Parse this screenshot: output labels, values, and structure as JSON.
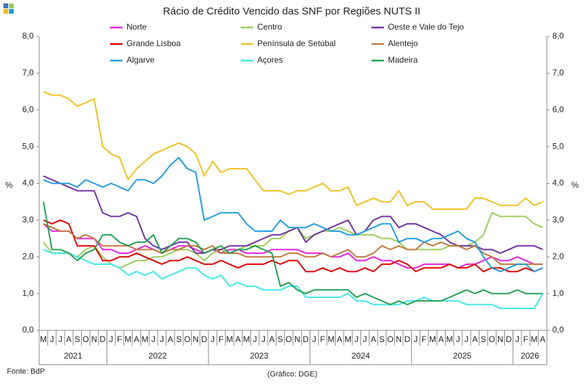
{
  "chart_data": {
    "type": "line",
    "title": "Rácio de Crédito Vencido das SNF por Regiões NUTS II",
    "ylabel": "%",
    "source": "Fonte: BdP",
    "credit": "(Gráfico: DGE)",
    "categories": [
      "M",
      "J",
      "J",
      "A",
      "S",
      "O",
      "N",
      "D",
      "J",
      "F",
      "M",
      "A",
      "M",
      "J",
      "J",
      "A",
      "S",
      "O",
      "N",
      "D",
      "J",
      "F",
      "M",
      "A",
      "M",
      "J",
      "J",
      "A",
      "S",
      "O",
      "N",
      "D",
      "J",
      "F",
      "M",
      "A",
      "M",
      "J",
      "J",
      "A",
      "S",
      "O",
      "N",
      "D",
      "J",
      "F",
      "M",
      "A",
      "M",
      "J",
      "J",
      "A",
      "S",
      "O",
      "N",
      "D",
      "J",
      "F",
      "M",
      "A"
    ],
    "year_labels": [
      "2021",
      "2022",
      "2023",
      "2024",
      "2025",
      "2026"
    ],
    "ylim": [
      0,
      8
    ],
    "yticks": [
      {
        "value": 0,
        "label": "0,0"
      },
      {
        "value": 1,
        "label": "1,0"
      },
      {
        "value": 2,
        "label": "2,0"
      },
      {
        "value": 3,
        "label": "3,0"
      },
      {
        "value": 4,
        "label": "4,0"
      },
      {
        "value": 5,
        "label": "5,0"
      },
      {
        "value": 6,
        "label": "6,0"
      },
      {
        "value": 7,
        "label": "7,0"
      },
      {
        "value": 8,
        "label": "8,0"
      }
    ],
    "series": [
      {
        "name": "Norte",
        "color": "#e620e0",
        "values": [
          2.9,
          2.7,
          2.7,
          2.7,
          2.5,
          2.5,
          2.5,
          2.2,
          2.2,
          2.1,
          2.1,
          2.2,
          2.3,
          2.2,
          2.1,
          2.2,
          2.3,
          2.3,
          2.2,
          2.1,
          2.2,
          2.1,
          2.2,
          2.2,
          2.1,
          2.1,
          2.1,
          2.2,
          2.2,
          2.2,
          2.2,
          2.1,
          2.1,
          2.1,
          2.0,
          2.0,
          2.1,
          1.9,
          1.9,
          2.0,
          1.9,
          1.9,
          1.8,
          1.7,
          1.7,
          1.8,
          1.8,
          1.8,
          1.8,
          1.7,
          1.8,
          1.8,
          1.9,
          2.0,
          1.9,
          1.9,
          2.0,
          1.9,
          1.8,
          1.8
        ]
      },
      {
        "name": "Centro",
        "color": "#9acd5a",
        "values": [
          2.4,
          2.1,
          2.1,
          2.1,
          2.0,
          2.2,
          2.3,
          2.0,
          1.8,
          1.7,
          1.8,
          1.9,
          1.9,
          2.0,
          2.0,
          2.1,
          2.2,
          2.2,
          2.1,
          1.9,
          2.1,
          2.2,
          2.1,
          2.2,
          2.3,
          2.3,
          2.3,
          2.5,
          2.5,
          2.7,
          2.8,
          2.5,
          2.6,
          2.7,
          2.7,
          2.8,
          2.7,
          2.6,
          2.6,
          2.6,
          2.5,
          2.5,
          2.4,
          2.2,
          2.2,
          2.2,
          2.2,
          2.2,
          2.3,
          2.3,
          2.3,
          2.4,
          2.6,
          3.2,
          3.1,
          3.1,
          3.1,
          3.1,
          2.9,
          2.8
        ]
      },
      {
        "name": "Oeste e Vale do Tejo",
        "color": "#7030a0",
        "values": [
          4.2,
          4.1,
          4.0,
          3.9,
          3.8,
          3.8,
          3.8,
          3.2,
          3.1,
          3.1,
          3.2,
          3.1,
          2.5,
          2.3,
          2.2,
          2.3,
          2.4,
          2.4,
          2.1,
          2.1,
          2.2,
          2.2,
          2.3,
          2.3,
          2.3,
          2.4,
          2.5,
          2.6,
          2.6,
          2.7,
          2.8,
          2.4,
          2.6,
          2.7,
          2.8,
          2.9,
          3.0,
          2.6,
          2.7,
          3.0,
          3.1,
          3.1,
          2.8,
          2.9,
          2.9,
          2.8,
          2.7,
          2.6,
          2.4,
          2.3,
          2.3,
          2.3,
          2.2,
          2.2,
          2.1,
          2.2,
          2.3,
          2.3,
          2.3,
          2.2
        ]
      },
      {
        "name": "Grande Lisboa",
        "color": "#e00000",
        "values": [
          3.0,
          2.9,
          3.0,
          2.9,
          2.3,
          2.3,
          2.3,
          1.9,
          1.9,
          2.0,
          2.0,
          2.1,
          2.0,
          1.9,
          1.8,
          1.9,
          1.9,
          2.0,
          1.9,
          1.8,
          1.8,
          1.9,
          1.8,
          1.7,
          1.8,
          1.8,
          1.8,
          1.9,
          1.8,
          1.9,
          1.9,
          1.6,
          1.6,
          1.7,
          1.6,
          1.7,
          1.6,
          1.6,
          1.7,
          1.6,
          1.8,
          1.8,
          1.9,
          1.8,
          1.6,
          1.7,
          1.7,
          1.7,
          1.8,
          1.7,
          1.7,
          1.8,
          1.6,
          1.7,
          1.7,
          1.6,
          1.6,
          1.7,
          1.6,
          1.7
        ]
      },
      {
        "name": "Península de Setúbal",
        "color": "#f0c020",
        "values": [
          6.5,
          6.4,
          6.4,
          6.3,
          6.1,
          6.2,
          6.3,
          5.0,
          4.8,
          4.7,
          4.1,
          4.4,
          4.6,
          4.8,
          4.9,
          5.0,
          5.1,
          5.0,
          4.8,
          4.2,
          4.6,
          4.3,
          4.4,
          4.4,
          4.4,
          4.1,
          3.8,
          3.8,
          3.8,
          3.7,
          3.8,
          3.8,
          3.9,
          4.0,
          3.8,
          3.8,
          3.9,
          3.4,
          3.5,
          3.6,
          3.5,
          3.5,
          3.8,
          3.4,
          3.5,
          3.5,
          3.3,
          3.3,
          3.3,
          3.3,
          3.3,
          3.6,
          3.6,
          3.5,
          3.4,
          3.4,
          3.4,
          3.6,
          3.4,
          3.5
        ]
      },
      {
        "name": "Alentejo",
        "color": "#c0783c",
        "values": [
          2.9,
          2.8,
          2.7,
          2.7,
          2.5,
          2.6,
          2.5,
          2.3,
          2.3,
          2.3,
          2.3,
          2.2,
          2.2,
          2.2,
          2.1,
          2.2,
          2.2,
          2.3,
          2.3,
          2.2,
          2.3,
          2.1,
          2.1,
          2.1,
          2.0,
          2.0,
          2.0,
          2.0,
          2.0,
          2.1,
          2.1,
          2.0,
          2.0,
          2.1,
          2.0,
          2.1,
          2.2,
          2.0,
          2.0,
          2.1,
          2.3,
          2.2,
          2.3,
          2.2,
          2.2,
          2.4,
          2.3,
          2.4,
          2.3,
          2.3,
          2.2,
          2.3,
          2.1,
          2.0,
          1.8,
          1.8,
          1.8,
          1.8,
          1.8,
          1.8
        ]
      },
      {
        "name": "Algarve",
        "color": "#1e9be0",
        "values": [
          4.1,
          4.0,
          4.0,
          4.0,
          3.9,
          4.1,
          4.0,
          3.9,
          4.0,
          3.9,
          3.8,
          4.1,
          4.1,
          4.0,
          4.2,
          4.5,
          4.7,
          4.4,
          4.3,
          3.0,
          3.1,
          3.2,
          3.2,
          3.2,
          2.9,
          2.7,
          2.7,
          2.7,
          3.0,
          2.8,
          2.8,
          2.8,
          2.9,
          2.8,
          2.7,
          2.7,
          2.6,
          2.6,
          2.7,
          2.8,
          2.9,
          2.9,
          2.4,
          2.5,
          2.5,
          2.4,
          2.5,
          2.5,
          2.6,
          2.7,
          2.5,
          2.4,
          2.0,
          1.7,
          1.6,
          1.7,
          1.8,
          1.8,
          1.6,
          1.7
        ]
      },
      {
        "name": "Açores",
        "color": "#40e8e8",
        "values": [
          2.2,
          2.1,
          2.1,
          2.1,
          2.0,
          1.9,
          1.8,
          1.8,
          1.8,
          1.7,
          1.5,
          1.6,
          1.5,
          1.6,
          1.4,
          1.5,
          1.6,
          1.7,
          1.7,
          1.5,
          1.4,
          1.5,
          1.2,
          1.3,
          1.2,
          1.2,
          1.1,
          1.1,
          1.1,
          1.2,
          1.2,
          0.9,
          0.9,
          0.9,
          0.9,
          0.9,
          1.0,
          0.8,
          0.8,
          0.7,
          0.7,
          0.7,
          0.7,
          0.8,
          0.8,
          0.9,
          0.8,
          0.8,
          0.8,
          0.8,
          0.7,
          0.7,
          0.7,
          0.7,
          0.6,
          0.6,
          0.6,
          0.6,
          0.6,
          1.0
        ]
      },
      {
        "name": "Madeira",
        "color": "#20a050",
        "values": [
          3.5,
          2.2,
          2.2,
          2.1,
          1.9,
          2.1,
          2.2,
          2.6,
          2.6,
          2.4,
          2.3,
          2.4,
          2.4,
          2.6,
          2.1,
          2.3,
          2.5,
          2.5,
          2.4,
          2.1,
          2.2,
          2.3,
          2.1,
          2.2,
          2.2,
          2.3,
          2.2,
          2.1,
          1.2,
          1.3,
          1.1,
          1.0,
          1.1,
          1.1,
          1.1,
          1.1,
          1.1,
          0.9,
          1.0,
          0.9,
          0.8,
          0.7,
          0.8,
          0.7,
          0.8,
          0.8,
          0.8,
          0.8,
          0.9,
          1.0,
          1.1,
          1.0,
          1.1,
          1.0,
          1.0,
          1.0,
          1.1,
          1.0,
          1.0,
          1.0
        ]
      }
    ]
  }
}
